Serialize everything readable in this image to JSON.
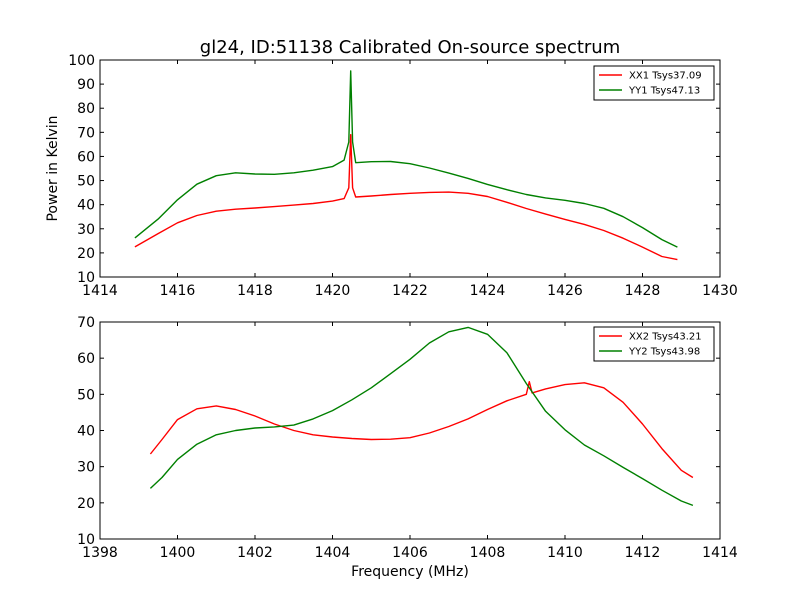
{
  "figure_title": "gl24, ID:51138 Calibrated On-source spectrum",
  "colors": {
    "xx": "#ff0000",
    "yy": "#008000",
    "axes": "#000000",
    "background": "#ffffff"
  },
  "chart_data": [
    {
      "type": "line",
      "title": "gl24, ID:51138 Calibrated On-source spectrum",
      "xlabel": "",
      "ylabel": "Power in Kelvin",
      "xlim": [
        1414,
        1430
      ],
      "ylim": [
        10,
        100
      ],
      "xticks": [
        "1414",
        "1416",
        "1418",
        "1420",
        "1422",
        "1424",
        "1426",
        "1428",
        "1430"
      ],
      "yticks": [
        "10",
        "20",
        "30",
        "40",
        "50",
        "60",
        "70",
        "80",
        "90",
        "100"
      ],
      "grid": false,
      "legend_position": "top-right",
      "series": [
        {
          "name": "XX1 Tsys37.09",
          "color": "#ff0000",
          "x": [
            1414.9,
            1415.5,
            1416.0,
            1416.5,
            1417.0,
            1417.5,
            1418.0,
            1418.5,
            1419.0,
            1419.5,
            1420.0,
            1420.3,
            1420.42,
            1420.47,
            1420.52,
            1420.6,
            1421.0,
            1421.5,
            1422.0,
            1422.5,
            1423.0,
            1423.5,
            1424.0,
            1424.5,
            1425.0,
            1425.5,
            1426.0,
            1426.5,
            1427.0,
            1427.5,
            1428.0,
            1428.5,
            1428.9
          ],
          "y": [
            22.5,
            28,
            32.5,
            35.5,
            37.3,
            38.1,
            38.6,
            39.2,
            39.8,
            40.5,
            41.5,
            42.5,
            47,
            69,
            47,
            43.2,
            43.6,
            44.2,
            44.7,
            45.1,
            45.2,
            44.7,
            43.4,
            41.0,
            38.4,
            36.1,
            33.9,
            31.8,
            29.3,
            26.1,
            22.4,
            18.5,
            17.2
          ]
        },
        {
          "name": "YY1 Tsys47.13",
          "color": "#008000",
          "x": [
            1414.9,
            1415.5,
            1416.0,
            1416.5,
            1417.0,
            1417.5,
            1418.0,
            1418.5,
            1419.0,
            1419.5,
            1420.0,
            1420.3,
            1420.42,
            1420.47,
            1420.52,
            1420.6,
            1421.0,
            1421.5,
            1422.0,
            1422.5,
            1423.0,
            1423.5,
            1424.0,
            1424.5,
            1425.0,
            1425.5,
            1426.0,
            1426.5,
            1427.0,
            1427.5,
            1428.0,
            1428.5,
            1428.9
          ],
          "y": [
            26.2,
            34,
            42,
            48.5,
            52,
            53.2,
            52.7,
            52.6,
            53.2,
            54.3,
            55.8,
            58.5,
            66,
            95.5,
            66,
            57.4,
            57.8,
            57.9,
            57.0,
            55.2,
            53.1,
            50.9,
            48.4,
            46.2,
            44.2,
            42.8,
            41.8,
            40.5,
            38.5,
            35,
            30.5,
            25.5,
            22.4
          ]
        }
      ]
    },
    {
      "type": "line",
      "title": "",
      "xlabel": "Frequency (MHz)",
      "ylabel": "",
      "xlim": [
        1398,
        1414
      ],
      "ylim": [
        10,
        70
      ],
      "xticks": [
        "1398",
        "1400",
        "1402",
        "1404",
        "1406",
        "1408",
        "1410",
        "1412",
        "1414"
      ],
      "yticks": [
        "10",
        "20",
        "30",
        "40",
        "50",
        "60",
        "70"
      ],
      "grid": false,
      "legend_position": "top-right",
      "series": [
        {
          "name": "XX2 Tsys43.21",
          "color": "#ff0000",
          "x": [
            1399.3,
            1399.6,
            1400.0,
            1400.5,
            1401.0,
            1401.5,
            1402.0,
            1402.5,
            1403.0,
            1403.5,
            1404.0,
            1404.5,
            1405.0,
            1405.5,
            1406.0,
            1406.5,
            1407.0,
            1407.5,
            1408.0,
            1408.5,
            1409.0,
            1409.08,
            1409.15,
            1409.5,
            1410.0,
            1410.5,
            1411.0,
            1411.5,
            1412.0,
            1412.5,
            1413.0,
            1413.3
          ],
          "y": [
            33.5,
            37.5,
            43,
            46,
            46.8,
            45.8,
            44,
            41.8,
            40,
            38.8,
            38.2,
            37.8,
            37.5,
            37.6,
            38,
            39.3,
            41.1,
            43.2,
            45.8,
            48.2,
            50,
            53.5,
            50.4,
            51.5,
            52.7,
            53.2,
            51.8,
            47.8,
            41.8,
            35,
            29,
            27
          ]
        },
        {
          "name": "YY2 Tsys43.98",
          "color": "#008000",
          "x": [
            1399.3,
            1399.6,
            1400.0,
            1400.5,
            1401.0,
            1401.5,
            1402.0,
            1402.5,
            1403.0,
            1403.5,
            1404.0,
            1404.5,
            1405.0,
            1405.5,
            1406.0,
            1406.5,
            1407.0,
            1407.5,
            1408.0,
            1408.5,
            1409.0,
            1409.5,
            1410.0,
            1410.5,
            1411.0,
            1411.5,
            1412.0,
            1412.5,
            1413.0,
            1413.3
          ],
          "y": [
            24,
            27,
            32,
            36.2,
            38.8,
            40,
            40.7,
            41,
            41.5,
            43.2,
            45.5,
            48.5,
            51.8,
            55.7,
            59.7,
            64.2,
            67.3,
            68.5,
            66.6,
            61.5,
            53,
            45.3,
            40.2,
            36,
            33,
            29.8,
            26.7,
            23.5,
            20.5,
            19.3
          ]
        }
      ]
    }
  ]
}
